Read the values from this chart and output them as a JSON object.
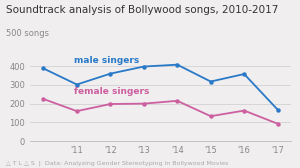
{
  "title": "Soundtrack analysis of Bollywood songs, 2010-2017",
  "ylabel": "500 songs",
  "years": [
    2010,
    2011,
    2012,
    2013,
    2014,
    2015,
    2016,
    2017
  ],
  "male_values": [
    388,
    302,
    360,
    398,
    408,
    318,
    358,
    168
  ],
  "female_values": [
    225,
    160,
    198,
    200,
    215,
    133,
    163,
    93
  ],
  "male_color": "#2979c8",
  "female_color": "#cc5fa0",
  "male_label": "male singers",
  "female_label": "female singers",
  "xtick_labels": [
    "",
    "'11",
    "'12",
    "'13",
    "'14",
    "'15",
    "'16",
    "'17"
  ],
  "yticks": [
    0,
    100,
    200,
    300,
    400
  ],
  "ylim": [
    0,
    520
  ],
  "background_color": "#f0eeee",
  "atlas_text": "△ T L △ S  |  Data: Analyzing Gender Stereotyping in Bollywood Movies",
  "title_fontsize": 7.5,
  "label_fontsize": 6.5,
  "tick_fontsize": 6.0,
  "footer_fontsize": 4.5
}
